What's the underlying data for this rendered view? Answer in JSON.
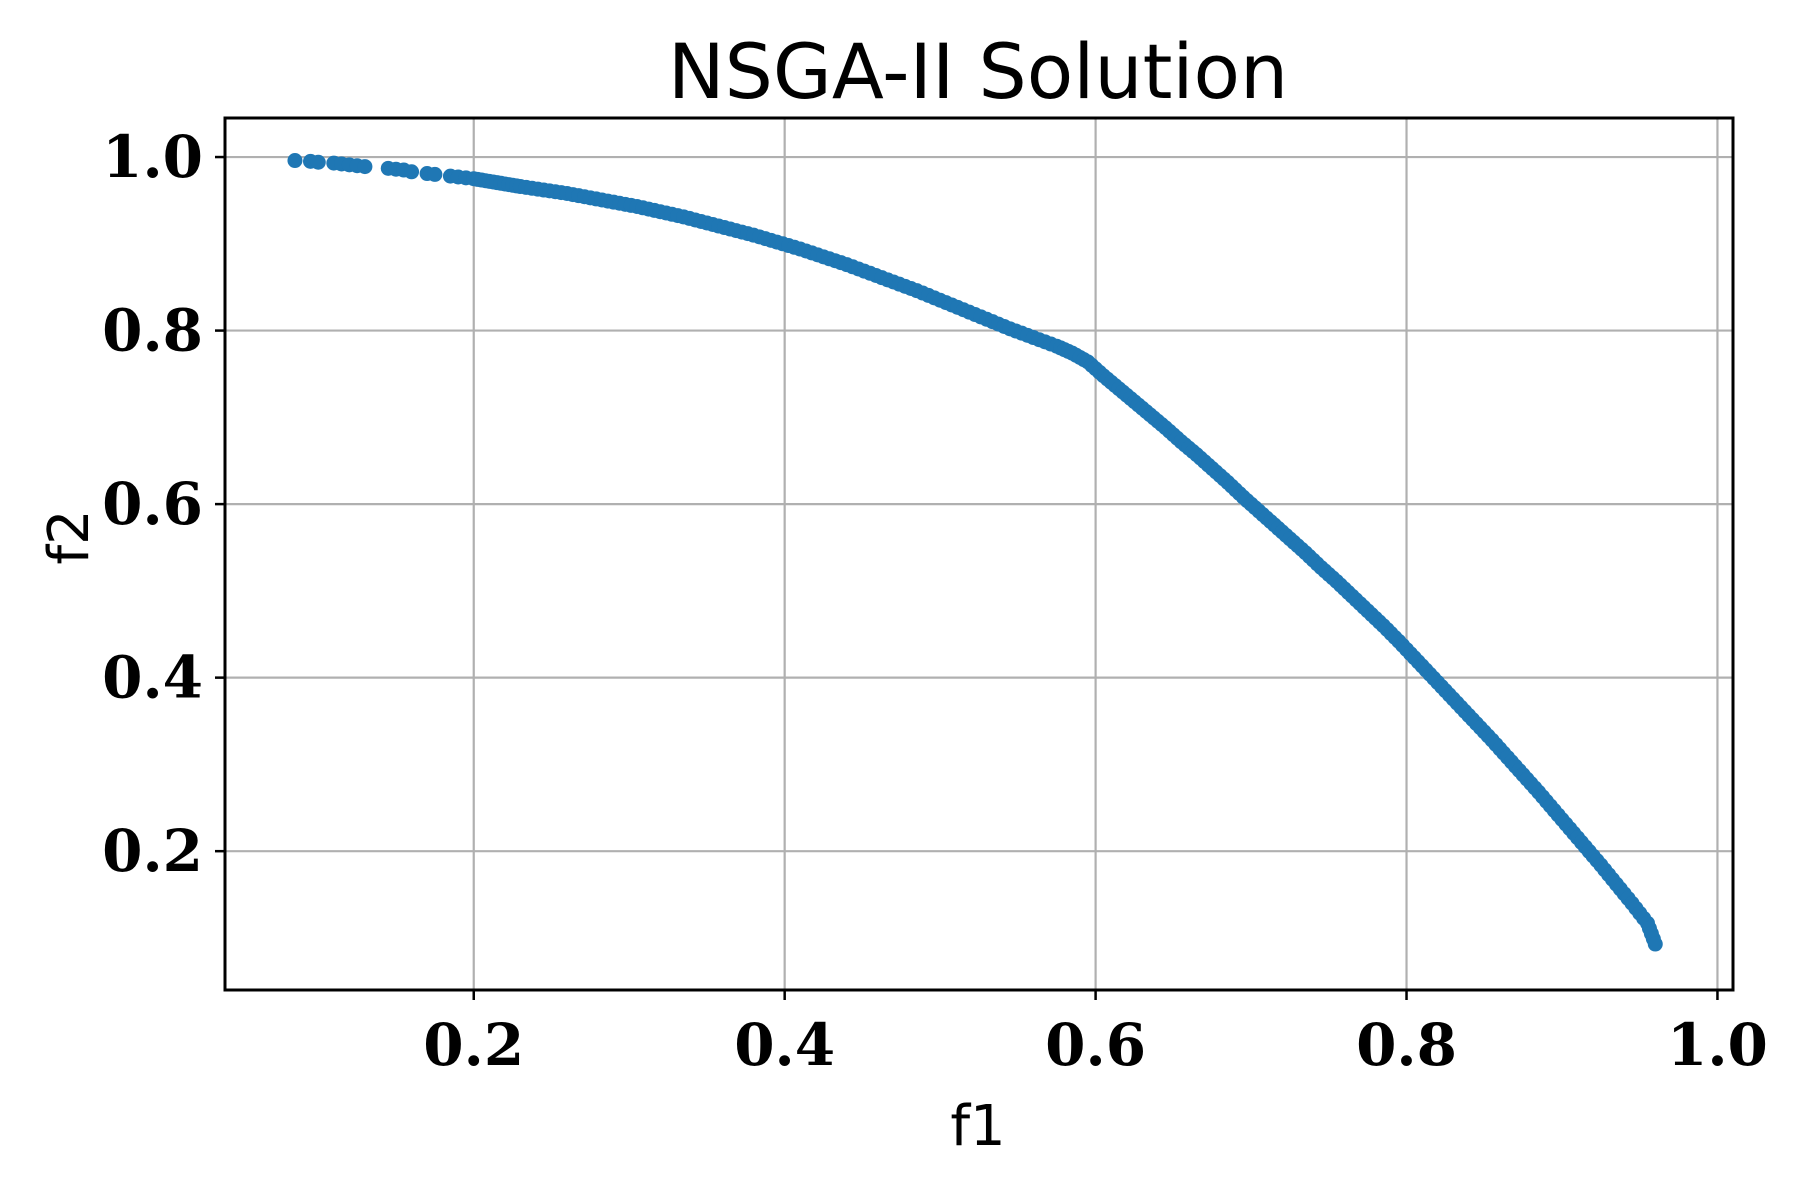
{
  "chart_data": {
    "type": "scatter",
    "title": "NSGA-II Solution",
    "xlabel": "f1",
    "ylabel": "f2",
    "xlim": [
      0.04,
      1.01
    ],
    "ylim": [
      0.04,
      1.045
    ],
    "xticks": [
      0.2,
      0.4,
      0.6,
      0.8,
      1.0
    ],
    "xtick_labels": [
      "0.2",
      "0.4",
      "0.6",
      "0.8",
      "1.0"
    ],
    "yticks": [
      0.2,
      0.4,
      0.6,
      0.8,
      1.0
    ],
    "ytick_labels": [
      "0.2",
      "0.4",
      "0.6",
      "0.8",
      "1.0"
    ],
    "grid": true,
    "marker_color": "#1f77b4",
    "series": [
      {
        "x": [
          0.085,
          0.095,
          0.1,
          0.11,
          0.115,
          0.12,
          0.125,
          0.13,
          0.145,
          0.15,
          0.155,
          0.16,
          0.17,
          0.175,
          0.185,
          0.19,
          0.195,
          0.2,
          0.21,
          0.22,
          0.23,
          0.245,
          0.26,
          0.275,
          0.29,
          0.305,
          0.32,
          0.335,
          0.35,
          0.365,
          0.38,
          0.395,
          0.41,
          0.425,
          0.44,
          0.455,
          0.47,
          0.485,
          0.5,
          0.515,
          0.53,
          0.545,
          0.56,
          0.575,
          0.585,
          0.595,
          0.605,
          0.615,
          0.625,
          0.635,
          0.645,
          0.655,
          0.665,
          0.675,
          0.685,
          0.695,
          0.705,
          0.715,
          0.725,
          0.735,
          0.745,
          0.755,
          0.765,
          0.775,
          0.785,
          0.795,
          0.805,
          0.815,
          0.825,
          0.835,
          0.845,
          0.855,
          0.865,
          0.875,
          0.885,
          0.895,
          0.905,
          0.915,
          0.925,
          0.935,
          0.945,
          0.955,
          0.96
        ],
        "y": [
          0.996,
          0.995,
          0.994,
          0.993,
          0.992,
          0.991,
          0.99,
          0.989,
          0.987,
          0.986,
          0.985,
          0.983,
          0.981,
          0.98,
          0.978,
          0.977,
          0.976,
          0.975,
          0.972,
          0.969,
          0.966,
          0.962,
          0.958,
          0.953,
          0.948,
          0.943,
          0.937,
          0.931,
          0.924,
          0.917,
          0.91,
          0.902,
          0.894,
          0.885,
          0.876,
          0.866,
          0.856,
          0.846,
          0.835,
          0.824,
          0.813,
          0.802,
          0.792,
          0.782,
          0.774,
          0.764,
          0.748,
          0.733,
          0.718,
          0.703,
          0.688,
          0.672,
          0.657,
          0.641,
          0.625,
          0.608,
          0.592,
          0.576,
          0.56,
          0.544,
          0.527,
          0.511,
          0.494,
          0.477,
          0.46,
          0.442,
          0.423,
          0.404,
          0.385,
          0.366,
          0.347,
          0.328,
          0.308,
          0.288,
          0.268,
          0.247,
          0.226,
          0.205,
          0.184,
          0.162,
          0.14,
          0.117,
          0.093
        ]
      }
    ]
  }
}
